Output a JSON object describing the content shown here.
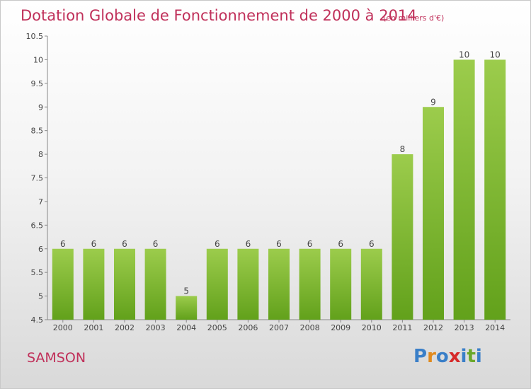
{
  "chart_data": {
    "type": "bar",
    "title": "Dotation Globale de Fonctionnement de 2000 à 2014",
    "subtitle": "(en milliers d'€)",
    "categories": [
      "2000",
      "2001",
      "2002",
      "2003",
      "2004",
      "2005",
      "2006",
      "2007",
      "2008",
      "2009",
      "2010",
      "2011",
      "2012",
      "2013",
      "2014"
    ],
    "values": [
      6,
      6,
      6,
      6,
      5,
      6,
      6,
      6,
      6,
      6,
      6,
      8,
      9,
      10,
      10
    ],
    "data_labels": [
      "6",
      "6",
      "6",
      "6",
      "5",
      "6",
      "6",
      "6",
      "6",
      "6",
      "6",
      "8",
      "9",
      "10",
      "10"
    ],
    "ylim": [
      4.5,
      10.5
    ],
    "yticks": [
      "4.5",
      "5",
      "5.5",
      "6",
      "6.5",
      "7",
      "7.5",
      "8",
      "8.5",
      "9",
      "9.5",
      "10",
      "10.5"
    ],
    "grid": false,
    "bar_color_top": "#9ccc4c",
    "bar_color_bottom": "#62a11b"
  },
  "commune": "SAMSON",
  "logo": {
    "text": "Proxiti",
    "letters": [
      "P",
      "r",
      "o",
      "x",
      "i",
      "t",
      "i"
    ],
    "colors": [
      "#3a7fc8",
      "#e08a1e",
      "#3a7fc8",
      "#d62a2a",
      "#3a7fc8",
      "#6aa82a",
      "#3a7fc8"
    ]
  }
}
